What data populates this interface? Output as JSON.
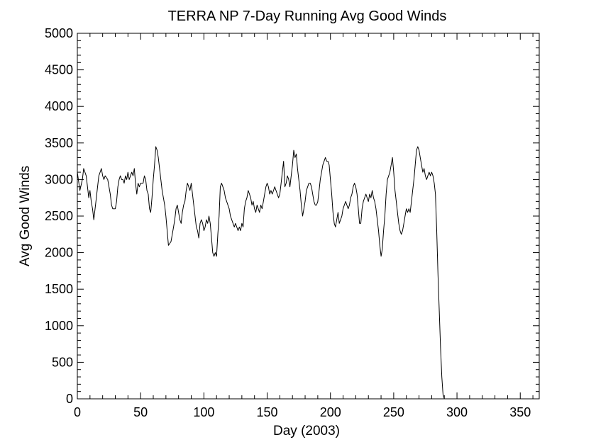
{
  "chart_data": {
    "type": "line",
    "title": "TERRA NP 7-Day Running Avg Good Winds",
    "xlabel": "Day (2003)",
    "ylabel": "Avg Good Winds",
    "xlim": [
      0,
      365
    ],
    "ylim": [
      0,
      5000
    ],
    "xticks": [
      0,
      50,
      100,
      150,
      200,
      250,
      300,
      350
    ],
    "yticks": [
      0,
      500,
      1000,
      1500,
      2000,
      2500,
      3000,
      3500,
      4000,
      4500,
      5000
    ],
    "grid": false,
    "series": [
      {
        "points": [
          [
            0,
            3100
          ],
          [
            2,
            2850
          ],
          [
            4,
            3000
          ],
          [
            5,
            3150
          ],
          [
            7,
            3050
          ],
          [
            8,
            2900
          ],
          [
            9,
            2750
          ],
          [
            10,
            2850
          ],
          [
            11,
            2700
          ],
          [
            12,
            2600
          ],
          [
            13,
            2450
          ],
          [
            14,
            2600
          ],
          [
            15,
            2750
          ],
          [
            16,
            2900
          ],
          [
            17,
            3050
          ],
          [
            18,
            3100
          ],
          [
            19,
            3150
          ],
          [
            20,
            3050
          ],
          [
            21,
            3000
          ],
          [
            22,
            3050
          ],
          [
            24,
            3000
          ],
          [
            25,
            2900
          ],
          [
            26,
            2800
          ],
          [
            27,
            2650
          ],
          [
            28,
            2600
          ],
          [
            30,
            2600
          ],
          [
            31,
            2700
          ],
          [
            32,
            2900
          ],
          [
            33,
            3000
          ],
          [
            34,
            3050
          ],
          [
            35,
            3000
          ],
          [
            36,
            3000
          ],
          [
            37,
            2950
          ],
          [
            38,
            3050
          ],
          [
            39,
            3000
          ],
          [
            40,
            3100
          ],
          [
            41,
            3000
          ],
          [
            42,
            3050
          ],
          [
            43,
            3100
          ],
          [
            44,
            3050
          ],
          [
            45,
            3150
          ],
          [
            46,
            2950
          ],
          [
            47,
            2800
          ],
          [
            48,
            2950
          ],
          [
            49,
            2900
          ],
          [
            50,
            2950
          ],
          [
            52,
            2950
          ],
          [
            53,
            3050
          ],
          [
            54,
            3000
          ],
          [
            55,
            2850
          ],
          [
            56,
            2800
          ],
          [
            57,
            2600
          ],
          [
            58,
            2550
          ],
          [
            59,
            2750
          ],
          [
            60,
            3000
          ],
          [
            61,
            3200
          ],
          [
            62,
            3450
          ],
          [
            63,
            3400
          ],
          [
            64,
            3300
          ],
          [
            65,
            3150
          ],
          [
            66,
            3000
          ],
          [
            67,
            2850
          ],
          [
            68,
            2750
          ],
          [
            69,
            2650
          ],
          [
            70,
            2500
          ],
          [
            71,
            2300
          ],
          [
            72,
            2100
          ],
          [
            74,
            2150
          ],
          [
            75,
            2250
          ],
          [
            76,
            2350
          ],
          [
            77,
            2450
          ],
          [
            78,
            2600
          ],
          [
            79,
            2650
          ],
          [
            80,
            2550
          ],
          [
            81,
            2450
          ],
          [
            82,
            2400
          ],
          [
            83,
            2550
          ],
          [
            84,
            2650
          ],
          [
            85,
            2700
          ],
          [
            86,
            2850
          ],
          [
            87,
            2950
          ],
          [
            88,
            2900
          ],
          [
            89,
            2850
          ],
          [
            90,
            2950
          ],
          [
            91,
            2800
          ],
          [
            92,
            2650
          ],
          [
            93,
            2500
          ],
          [
            94,
            2350
          ],
          [
            95,
            2300
          ],
          [
            96,
            2200
          ],
          [
            97,
            2400
          ],
          [
            98,
            2450
          ],
          [
            99,
            2400
          ],
          [
            100,
            2300
          ],
          [
            101,
            2350
          ],
          [
            102,
            2450
          ],
          [
            103,
            2400
          ],
          [
            104,
            2500
          ],
          [
            105,
            2400
          ],
          [
            106,
            2200
          ],
          [
            107,
            2000
          ],
          [
            108,
            1950
          ],
          [
            109,
            2000
          ],
          [
            110,
            1950
          ],
          [
            111,
            2250
          ],
          [
            112,
            2500
          ],
          [
            113,
            2900
          ],
          [
            114,
            2950
          ],
          [
            115,
            2900
          ],
          [
            116,
            2850
          ],
          [
            117,
            2750
          ],
          [
            118,
            2700
          ],
          [
            119,
            2650
          ],
          [
            120,
            2600
          ],
          [
            121,
            2500
          ],
          [
            122,
            2450
          ],
          [
            123,
            2400
          ],
          [
            124,
            2350
          ],
          [
            125,
            2400
          ],
          [
            126,
            2350
          ],
          [
            127,
            2300
          ],
          [
            128,
            2350
          ],
          [
            129,
            2300
          ],
          [
            130,
            2400
          ],
          [
            131,
            2350
          ],
          [
            132,
            2600
          ],
          [
            133,
            2700
          ],
          [
            134,
            2750
          ],
          [
            135,
            2850
          ],
          [
            136,
            2800
          ],
          [
            137,
            2750
          ],
          [
            138,
            2650
          ],
          [
            139,
            2700
          ],
          [
            140,
            2600
          ],
          [
            141,
            2550
          ],
          [
            142,
            2650
          ],
          [
            143,
            2600
          ],
          [
            144,
            2550
          ],
          [
            145,
            2650
          ],
          [
            146,
            2600
          ],
          [
            147,
            2700
          ],
          [
            148,
            2800
          ],
          [
            149,
            2900
          ],
          [
            150,
            2950
          ],
          [
            151,
            2900
          ],
          [
            152,
            2800
          ],
          [
            153,
            2850
          ],
          [
            154,
            2800
          ],
          [
            155,
            2850
          ],
          [
            156,
            2900
          ],
          [
            157,
            2850
          ],
          [
            158,
            2800
          ],
          [
            159,
            2750
          ],
          [
            160,
            2800
          ],
          [
            161,
            2950
          ],
          [
            162,
            3100
          ],
          [
            163,
            3250
          ],
          [
            164,
            2900
          ],
          [
            165,
            2950
          ],
          [
            166,
            3050
          ],
          [
            167,
            3000
          ],
          [
            168,
            2900
          ],
          [
            169,
            3050
          ],
          [
            170,
            3200
          ],
          [
            171,
            3400
          ],
          [
            172,
            3300
          ],
          [
            173,
            3350
          ],
          [
            174,
            3150
          ],
          [
            175,
            3000
          ],
          [
            176,
            2850
          ],
          [
            177,
            2650
          ],
          [
            178,
            2500
          ],
          [
            179,
            2600
          ],
          [
            180,
            2700
          ],
          [
            181,
            2850
          ],
          [
            182,
            2900
          ],
          [
            183,
            2950
          ],
          [
            184,
            2950
          ],
          [
            185,
            2900
          ],
          [
            186,
            2800
          ],
          [
            187,
            2700
          ],
          [
            188,
            2650
          ],
          [
            189,
            2650
          ],
          [
            190,
            2700
          ],
          [
            191,
            2850
          ],
          [
            192,
            3000
          ],
          [
            193,
            3100
          ],
          [
            194,
            3200
          ],
          [
            195,
            3250
          ],
          [
            196,
            3300
          ],
          [
            197,
            3250
          ],
          [
            198,
            3250
          ],
          [
            199,
            3200
          ],
          [
            200,
            3000
          ],
          [
            201,
            2800
          ],
          [
            202,
            2550
          ],
          [
            203,
            2400
          ],
          [
            204,
            2350
          ],
          [
            205,
            2450
          ],
          [
            206,
            2550
          ],
          [
            207,
            2400
          ],
          [
            208,
            2450
          ],
          [
            209,
            2500
          ],
          [
            210,
            2600
          ],
          [
            211,
            2650
          ],
          [
            212,
            2700
          ],
          [
            213,
            2650
          ],
          [
            214,
            2600
          ],
          [
            215,
            2650
          ],
          [
            216,
            2750
          ],
          [
            217,
            2800
          ],
          [
            218,
            2900
          ],
          [
            219,
            2950
          ],
          [
            220,
            2900
          ],
          [
            221,
            2800
          ],
          [
            222,
            2600
          ],
          [
            223,
            2400
          ],
          [
            224,
            2400
          ],
          [
            225,
            2600
          ],
          [
            226,
            2700
          ],
          [
            227,
            2750
          ],
          [
            228,
            2800
          ],
          [
            229,
            2750
          ],
          [
            230,
            2700
          ],
          [
            231,
            2800
          ],
          [
            232,
            2750
          ],
          [
            233,
            2850
          ],
          [
            234,
            2750
          ],
          [
            235,
            2700
          ],
          [
            236,
            2600
          ],
          [
            237,
            2450
          ],
          [
            238,
            2300
          ],
          [
            239,
            2100
          ],
          [
            240,
            1950
          ],
          [
            241,
            2050
          ],
          [
            242,
            2300
          ],
          [
            243,
            2500
          ],
          [
            244,
            2800
          ],
          [
            245,
            3000
          ],
          [
            246,
            3050
          ],
          [
            247,
            3100
          ],
          [
            248,
            3200
          ],
          [
            249,
            3300
          ],
          [
            250,
            3100
          ],
          [
            251,
            2850
          ],
          [
            252,
            2700
          ],
          [
            253,
            2550
          ],
          [
            254,
            2400
          ],
          [
            255,
            2300
          ],
          [
            256,
            2250
          ],
          [
            257,
            2300
          ],
          [
            258,
            2400
          ],
          [
            259,
            2500
          ],
          [
            260,
            2600
          ],
          [
            261,
            2550
          ],
          [
            262,
            2600
          ],
          [
            263,
            2550
          ],
          [
            264,
            2700
          ],
          [
            265,
            2850
          ],
          [
            266,
            3000
          ],
          [
            267,
            3200
          ],
          [
            268,
            3400
          ],
          [
            269,
            3450
          ],
          [
            270,
            3400
          ],
          [
            271,
            3300
          ],
          [
            272,
            3200
          ],
          [
            273,
            3100
          ],
          [
            274,
            3150
          ],
          [
            275,
            3050
          ],
          [
            276,
            3000
          ],
          [
            277,
            3050
          ],
          [
            278,
            3100
          ],
          [
            279,
            3050
          ],
          [
            280,
            3100
          ],
          [
            281,
            3050
          ],
          [
            282,
            2950
          ],
          [
            283,
            2800
          ],
          [
            284,
            2300
          ],
          [
            285,
            1700
          ],
          [
            286,
            1200
          ],
          [
            287,
            700
          ],
          [
            288,
            300
          ],
          [
            289,
            60
          ],
          [
            290,
            0
          ]
        ]
      }
    ]
  }
}
